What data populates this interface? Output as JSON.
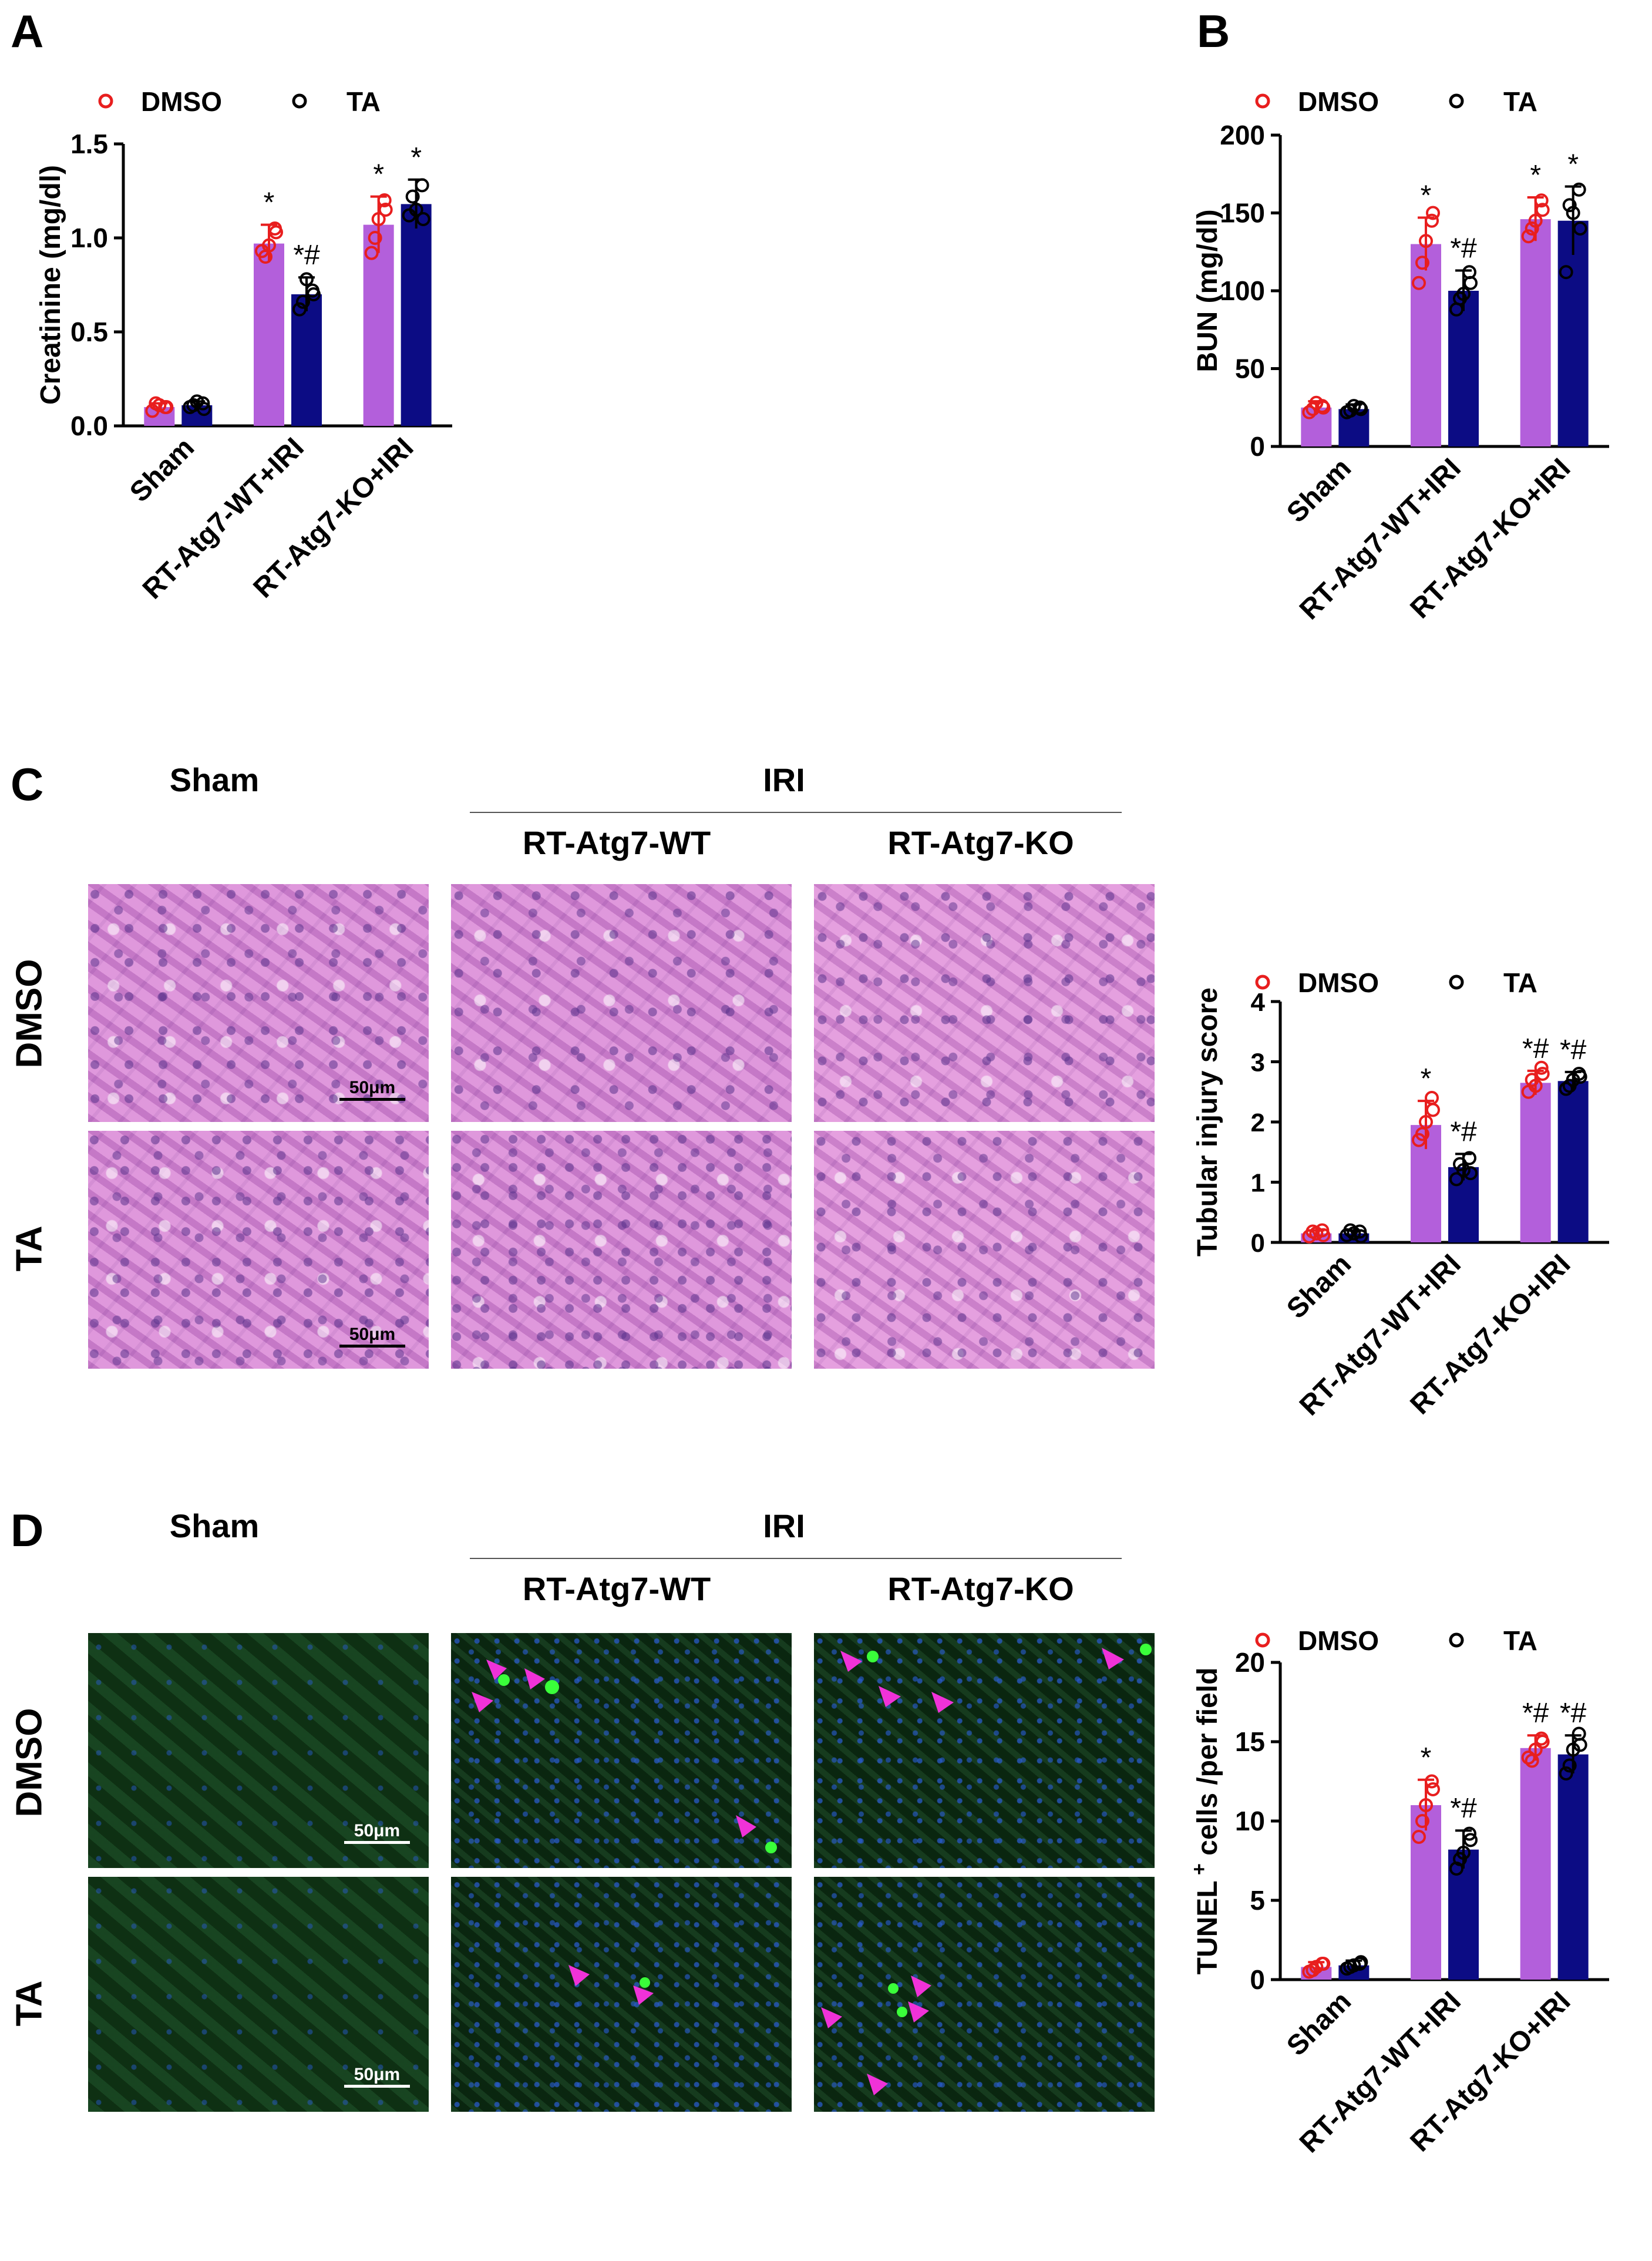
{
  "panels": {
    "a": "A",
    "b": "B",
    "c": "C",
    "d": "D"
  },
  "legend": {
    "dmso": "DMSO",
    "ta": "TA"
  },
  "colors": {
    "dmso_bar": "#b35fdb",
    "ta_bar": "#0c0c84",
    "dmso_marker": "#e81e1e",
    "ta_marker": "#000000",
    "arrow": "#f032d8"
  },
  "histology": {
    "sham": "Sham",
    "iri": "IRI",
    "wt": "RT-Atg7-WT",
    "ko": "RT-Atg7-KO",
    "row_dmso": "DMSO",
    "row_ta": "TA",
    "scale": "50μm"
  },
  "chart_data": [
    {
      "type": "bar",
      "panel": "A",
      "ylabel": "Creatinine (mg/dl)",
      "ylim": [
        0,
        1.5
      ],
      "yticks": [
        "0.0",
        "0.5",
        "1.0",
        "1.5"
      ],
      "categories": [
        "Sham",
        "RT-Atg7-WT+IRI",
        "RT-Atg7-KO+IRI"
      ],
      "series": [
        {
          "name": "DMSO",
          "values": [
            0.1,
            0.97,
            1.07
          ],
          "err": [
            0.02,
            0.1,
            0.15
          ],
          "points": [
            [
              0.08,
              0.1,
              0.11,
              0.12,
              0.1
            ],
            [
              0.93,
              1.05,
              0.96,
              0.9,
              1.03
            ],
            [
              0.92,
              1.2,
              1.1,
              1.0,
              1.15
            ]
          ],
          "annot": [
            "",
            "*",
            "*"
          ]
        },
        {
          "name": "TA",
          "values": [
            0.11,
            0.7,
            1.18
          ],
          "err": [
            0.02,
            0.09,
            0.13
          ],
          "points": [
            [
              0.1,
              0.12,
              0.13,
              0.11,
              0.09
            ],
            [
              0.62,
              0.72,
              0.78,
              0.66,
              0.7
            ],
            [
              1.12,
              1.28,
              1.15,
              1.22,
              1.1
            ]
          ],
          "annot": [
            "",
            "*#",
            "*"
          ]
        }
      ]
    },
    {
      "type": "bar",
      "panel": "B",
      "ylabel": "BUN (mg/dl)",
      "ylim": [
        0,
        200
      ],
      "yticks": [
        "0",
        "50",
        "100",
        "150",
        "200"
      ],
      "categories": [
        "Sham",
        "RT-Atg7-WT+IRI",
        "RT-Atg7-KO+IRI"
      ],
      "series": [
        {
          "name": "DMSO",
          "values": [
            25,
            130,
            146
          ],
          "err": [
            4,
            17,
            14
          ],
          "points": [
            [
              22,
              26,
              28,
              24,
              25
            ],
            [
              105,
              145,
              132,
              118,
              150
            ],
            [
              135,
              158,
              145,
              140,
              152
            ]
          ],
          "annot": [
            "",
            "*",
            "*"
          ]
        },
        {
          "name": "TA",
          "values": [
            24,
            100,
            145
          ],
          "err": [
            3,
            13,
            22
          ],
          "points": [
            [
              22,
              25,
              26,
              23,
              24
            ],
            [
              88,
              112,
              98,
              95,
              105
            ],
            [
              112,
              165,
              150,
              155,
              140
            ]
          ],
          "annot": [
            "",
            "*#",
            "*"
          ]
        }
      ]
    },
    {
      "type": "bar",
      "panel": "C",
      "ylabel": "Tubular injury score",
      "ylim": [
        0,
        4
      ],
      "yticks": [
        "0",
        "1",
        "2",
        "3",
        "4"
      ],
      "categories": [
        "Sham",
        "RT-Atg7-WT+IRI",
        "RT-Atg7-KO+IRI"
      ],
      "series": [
        {
          "name": "DMSO",
          "values": [
            0.15,
            1.95,
            2.65
          ],
          "err": [
            0.05,
            0.4,
            0.2
          ],
          "points": [
            [
              0.1,
              0.2,
              0.15,
              0.18,
              0.12
            ],
            [
              1.7,
              2.4,
              2.0,
              1.8,
              2.2
            ],
            [
              2.5,
              2.9,
              2.6,
              2.7,
              2.8
            ]
          ],
          "annot": [
            "",
            "*",
            "*#"
          ]
        },
        {
          "name": "TA",
          "values": [
            0.15,
            1.25,
            2.68
          ],
          "err": [
            0.05,
            0.22,
            0.15
          ],
          "points": [
            [
              0.12,
              0.18,
              0.15,
              0.2,
              0.1
            ],
            [
              1.05,
              1.4,
              1.2,
              1.3,
              1.15
            ],
            [
              2.55,
              2.8,
              2.7,
              2.6,
              2.75
            ]
          ],
          "annot": [
            "",
            "*#",
            "*#"
          ]
        }
      ]
    },
    {
      "type": "bar",
      "panel": "D",
      "ylabel_pre": "TUNEL",
      "ylabel_sup": "+",
      "ylabel_post": " cells /per field",
      "ylim": [
        0,
        20
      ],
      "yticks": [
        "0",
        "5",
        "10",
        "15",
        "20"
      ],
      "categories": [
        "Sham",
        "RT-Atg7-WT+IRI",
        "RT-Atg7-KO+IRI"
      ],
      "series": [
        {
          "name": "DMSO",
          "values": [
            0.8,
            11.0,
            14.6
          ],
          "err": [
            0.3,
            1.6,
            0.8
          ],
          "points": [
            [
              0.5,
              1.0,
              0.8,
              0.6,
              1.0
            ],
            [
              9.0,
              12.5,
              11.0,
              10.0,
              12.0
            ],
            [
              14.0,
              15.2,
              14.5,
              13.8,
              15.0
            ]
          ],
          "annot": [
            "",
            "*",
            "*#"
          ]
        },
        {
          "name": "TA",
          "values": [
            0.9,
            8.2,
            14.2
          ],
          "err": [
            0.3,
            1.2,
            1.2
          ],
          "points": [
            [
              0.7,
              1.0,
              0.9,
              0.8,
              1.1
            ],
            [
              7.0,
              9.2,
              8.0,
              7.6,
              8.8
            ],
            [
              13.0,
              15.5,
              14.5,
              13.5,
              14.8
            ]
          ],
          "annot": [
            "",
            "*#",
            "*#"
          ]
        }
      ]
    }
  ]
}
